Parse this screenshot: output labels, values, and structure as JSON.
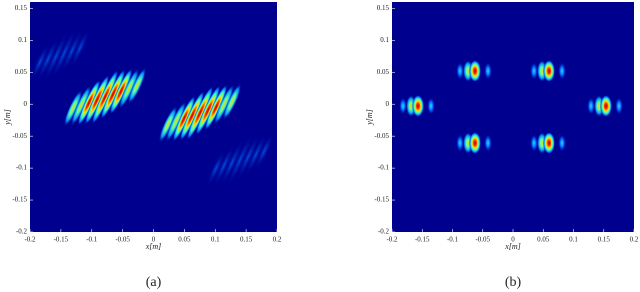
{
  "chart_data": [
    {
      "type": "heatmap",
      "xlabel": "x[m]",
      "ylabel": "y[m]",
      "caption": "(a)",
      "xlim": [
        -0.2,
        0.2
      ],
      "ylim": [
        -0.2,
        0.16
      ],
      "xticks": [
        -0.2,
        -0.15,
        -0.1,
        -0.05,
        0,
        0.05,
        0.1,
        0.15,
        0.2
      ],
      "yticks": [
        0.15,
        0.1,
        0.05,
        0,
        -0.05,
        -0.1,
        -0.15,
        -0.2
      ]
    },
    {
      "type": "heatmap",
      "xlabel": "x[m]",
      "ylabel": "y[m]",
      "caption": "(b)",
      "xlim": [
        -0.2,
        0.2
      ],
      "ylim": [
        -0.2,
        0.16
      ],
      "xticks": [
        -0.2,
        -0.15,
        -0.1,
        -0.05,
        0,
        0.05,
        0.1,
        0.15,
        0.2
      ],
      "yticks": [
        0.15,
        0.1,
        0.05,
        0,
        -0.05,
        -0.1,
        -0.15,
        -0.2
      ]
    }
  ]
}
